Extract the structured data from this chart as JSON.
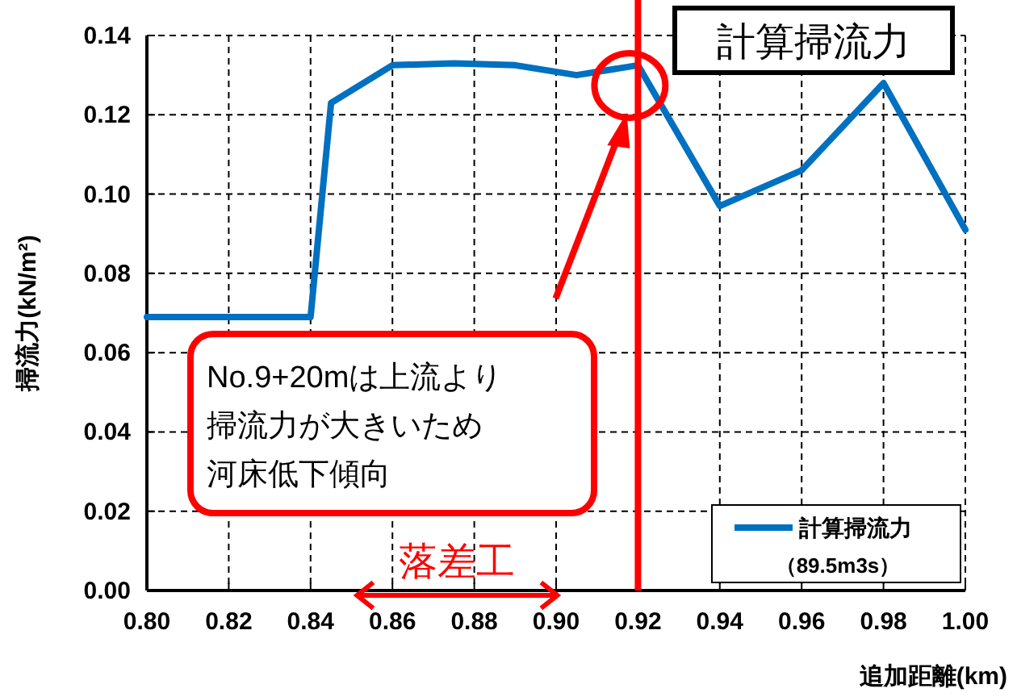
{
  "chart_data": {
    "type": "line",
    "xlabel": "追加距離(km)",
    "ylabel": "掃流力(kN/m²)",
    "xlim": [
      0.8,
      1.0
    ],
    "xticks": [
      {
        "value": 0.8,
        "label": "0.80"
      },
      {
        "value": 0.82,
        "label": "0.82"
      },
      {
        "value": 0.84,
        "label": "0.84"
      },
      {
        "value": 0.86,
        "label": "0.86"
      },
      {
        "value": 0.88,
        "label": "0.88"
      },
      {
        "value": 0.9,
        "label": "0.90"
      },
      {
        "value": 0.92,
        "label": "0.92"
      },
      {
        "value": 0.94,
        "label": "0.94"
      },
      {
        "value": 0.96,
        "label": "0.96"
      },
      {
        "value": 0.98,
        "label": "0.98"
      },
      {
        "value": 1.0,
        "label": "1.00"
      }
    ],
    "ylim": [
      0,
      0.14
    ],
    "yticks": [
      {
        "value": 0,
        "label": "0.00"
      },
      {
        "value": 0.02,
        "label": "0.02"
      },
      {
        "value": 0.04,
        "label": "0.04"
      },
      {
        "value": 0.06,
        "label": "0.06"
      },
      {
        "value": 0.08,
        "label": "0.08"
      },
      {
        "value": 0.1,
        "label": "0.10"
      },
      {
        "value": 0.12,
        "label": "0.12"
      },
      {
        "value": 0.14,
        "label": "0.14"
      }
    ],
    "grid": true,
    "legend": "bottom right",
    "marker": "none",
    "line_style": "solid",
    "series": [
      {
        "name": "計算掃流力（89.5m3s）",
        "color": "#0070c0",
        "x": [
          0.8,
          0.84,
          0.845,
          0.86,
          0.875,
          0.89,
          0.905,
          0.92,
          0.94,
          0.96,
          0.98,
          1.0
        ],
        "values": [
          0.069,
          0.069,
          0.123,
          0.1325,
          0.133,
          0.1325,
          0.13,
          0.1325,
          0.097,
          0.106,
          0.128,
          0.091
        ]
      }
    ],
    "ref_lines": [
      {
        "axis": "x",
        "value": 0.92,
        "color": "#ff0000",
        "line_style": "solid"
      }
    ],
    "annotations": [
      "計算掃流力",
      "No.9+20mは上流より掃流力が大きいため河床低下傾向",
      "落差工"
    ]
  }
}
